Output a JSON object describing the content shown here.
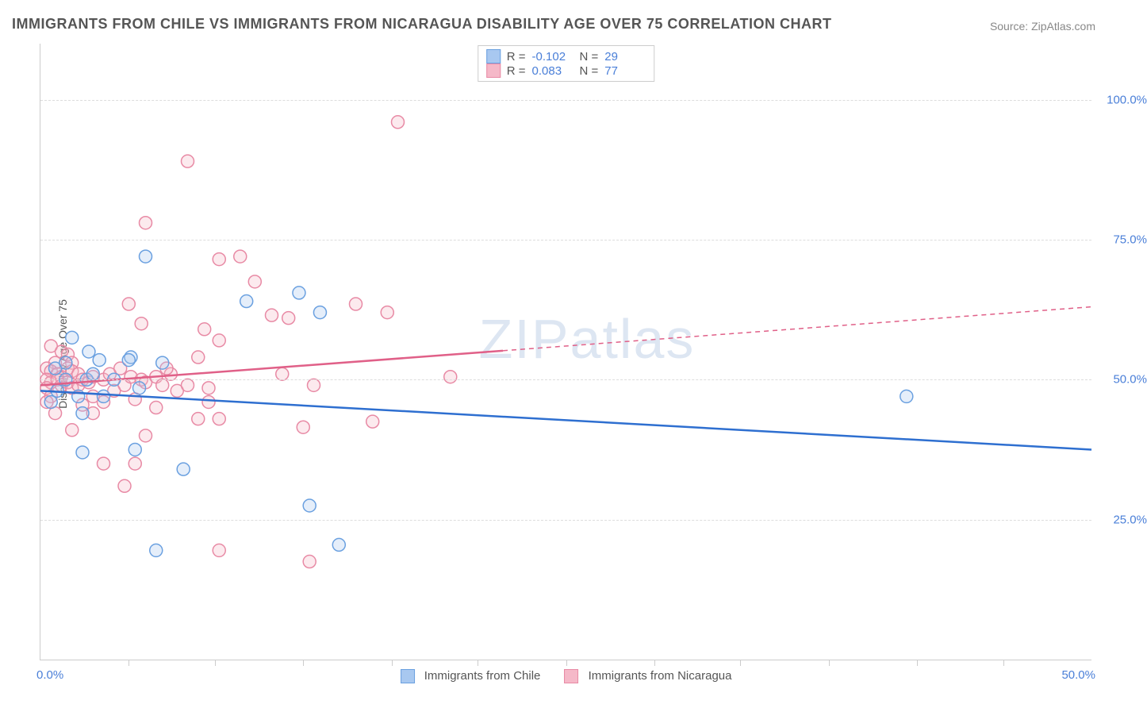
{
  "title": "IMMIGRANTS FROM CHILE VS IMMIGRANTS FROM NICARAGUA DISABILITY AGE OVER 75 CORRELATION CHART",
  "source": "Source: ZipAtlas.com",
  "watermark": "ZIPatlas",
  "ylabel": "Disability Age Over 75",
  "chart": {
    "type": "scatter",
    "xlim": [
      0,
      50
    ],
    "ylim": [
      0,
      110
    ],
    "x_tick_labels": [
      "0.0%",
      "50.0%"
    ],
    "y_tick_labels": [
      "25.0%",
      "50.0%",
      "75.0%",
      "100.0%"
    ],
    "y_tick_values": [
      25,
      50,
      75,
      100
    ],
    "x_minor_ticks": [
      4.2,
      8.3,
      12.5,
      16.7,
      20.8,
      25,
      29.2,
      33.3,
      37.5,
      41.7,
      45.8
    ],
    "gridline_color": "#dddddd",
    "axis_color": "#cccccc",
    "label_color": "#4a7fd8",
    "background_color": "#ffffff",
    "marker_radius": 8,
    "series": [
      {
        "name": "Immigrants from Chile",
        "color": {
          "fill": "#a8c8f0",
          "stroke": "#6aa0e0"
        },
        "line_color": "#2e6fd0",
        "r": -0.102,
        "n": 29,
        "trend": {
          "x1": 0,
          "y1": 48,
          "x2": 50,
          "y2": 37.5,
          "solid_until_x": 50
        },
        "points": [
          [
            5.0,
            72
          ],
          [
            1.5,
            57.5
          ],
          [
            2.3,
            55
          ],
          [
            4.3,
            54
          ],
          [
            2.8,
            53.5
          ],
          [
            4.2,
            53.5
          ],
          [
            9.8,
            64
          ],
          [
            13.3,
            62
          ],
          [
            12.3,
            65.5
          ],
          [
            1.2,
            50
          ],
          [
            2.2,
            50
          ],
          [
            3.5,
            50
          ],
          [
            4.7,
            48.5
          ],
          [
            5.8,
            53
          ],
          [
            0.8,
            48
          ],
          [
            0.5,
            46
          ],
          [
            1.8,
            47
          ],
          [
            3.0,
            47
          ],
          [
            2.0,
            44
          ],
          [
            4.5,
            37.5
          ],
          [
            2.0,
            37
          ],
          [
            6.8,
            34
          ],
          [
            0.7,
            52
          ],
          [
            1.2,
            53
          ],
          [
            12.8,
            27.5
          ],
          [
            5.5,
            19.5
          ],
          [
            14.2,
            20.5
          ],
          [
            41.2,
            47
          ],
          [
            2.5,
            51
          ]
        ]
      },
      {
        "name": "Immigrants from Nicaragua",
        "color": {
          "fill": "#f5b8c8",
          "stroke": "#e88aa5"
        },
        "line_color": "#e06088",
        "r": 0.083,
        "n": 77,
        "trend": {
          "x1": 0,
          "y1": 49,
          "x2": 50,
          "y2": 63,
          "solid_until_x": 22
        },
        "points": [
          [
            7.0,
            89
          ],
          [
            17.0,
            96
          ],
          [
            5.0,
            78
          ],
          [
            8.5,
            71.5
          ],
          [
            9.5,
            72
          ],
          [
            10.2,
            67.5
          ],
          [
            4.2,
            63.5
          ],
          [
            11.8,
            61
          ],
          [
            11.0,
            61.5
          ],
          [
            15.0,
            63.5
          ],
          [
            16.5,
            62
          ],
          [
            4.8,
            60
          ],
          [
            7.8,
            59
          ],
          [
            8.5,
            57
          ],
          [
            0.5,
            56
          ],
          [
            0.7,
            53
          ],
          [
            1.0,
            55
          ],
          [
            1.3,
            54.5
          ],
          [
            1.5,
            53
          ],
          [
            0.3,
            52
          ],
          [
            0.5,
            51.5
          ],
          [
            0.8,
            51
          ],
          [
            1.0,
            50.5
          ],
          [
            1.3,
            52
          ],
          [
            1.5,
            51.5
          ],
          [
            1.8,
            51
          ],
          [
            0.3,
            50
          ],
          [
            0.5,
            49.5
          ],
          [
            0.8,
            50
          ],
          [
            1.0,
            49
          ],
          [
            1.3,
            49.5
          ],
          [
            1.5,
            48.5
          ],
          [
            1.8,
            49
          ],
          [
            2.0,
            50
          ],
          [
            2.3,
            49.5
          ],
          [
            2.5,
            50.5
          ],
          [
            3.0,
            50
          ],
          [
            3.3,
            51
          ],
          [
            3.8,
            52
          ],
          [
            4.0,
            49
          ],
          [
            4.3,
            50.5
          ],
          [
            4.8,
            50
          ],
          [
            5.0,
            49.5
          ],
          [
            5.5,
            50.5
          ],
          [
            5.8,
            49
          ],
          [
            6.2,
            51
          ],
          [
            6.5,
            48
          ],
          [
            7.0,
            49
          ],
          [
            7.5,
            54
          ],
          [
            8.0,
            48.5
          ],
          [
            11.5,
            51
          ],
          [
            13.0,
            49
          ],
          [
            3.0,
            46
          ],
          [
            4.5,
            46.5
          ],
          [
            5.5,
            45
          ],
          [
            8.0,
            46
          ],
          [
            0.7,
            44
          ],
          [
            2.5,
            44
          ],
          [
            1.5,
            41
          ],
          [
            5.0,
            40
          ],
          [
            7.5,
            43
          ],
          [
            8.5,
            43
          ],
          [
            12.5,
            41.5
          ],
          [
            15.8,
            42.5
          ],
          [
            19.5,
            50.5
          ],
          [
            3.0,
            35
          ],
          [
            4.5,
            35
          ],
          [
            0.3,
            48.5
          ],
          [
            4.0,
            31
          ],
          [
            8.5,
            19.5
          ],
          [
            12.8,
            17.5
          ],
          [
            0.5,
            47
          ],
          [
            0.3,
            46
          ],
          [
            2.0,
            45.5
          ],
          [
            2.5,
            47
          ],
          [
            3.5,
            48
          ],
          [
            6.0,
            52
          ]
        ]
      }
    ]
  },
  "legend_top": {
    "rows": [
      {
        "swatch_fill": "#a8c8f0",
        "swatch_stroke": "#6aa0e0",
        "r_label": "R =",
        "r_val": "-0.102",
        "n_label": "N =",
        "n_val": "29"
      },
      {
        "swatch_fill": "#f5b8c8",
        "swatch_stroke": "#e88aa5",
        "r_label": "R =",
        "r_val": " 0.083",
        "n_label": "N =",
        "n_val": "77"
      }
    ]
  },
  "legend_bottom": [
    {
      "swatch_fill": "#a8c8f0",
      "swatch_stroke": "#6aa0e0",
      "label": "Immigrants from Chile"
    },
    {
      "swatch_fill": "#f5b8c8",
      "swatch_stroke": "#e88aa5",
      "label": "Immigrants from Nicaragua"
    }
  ]
}
